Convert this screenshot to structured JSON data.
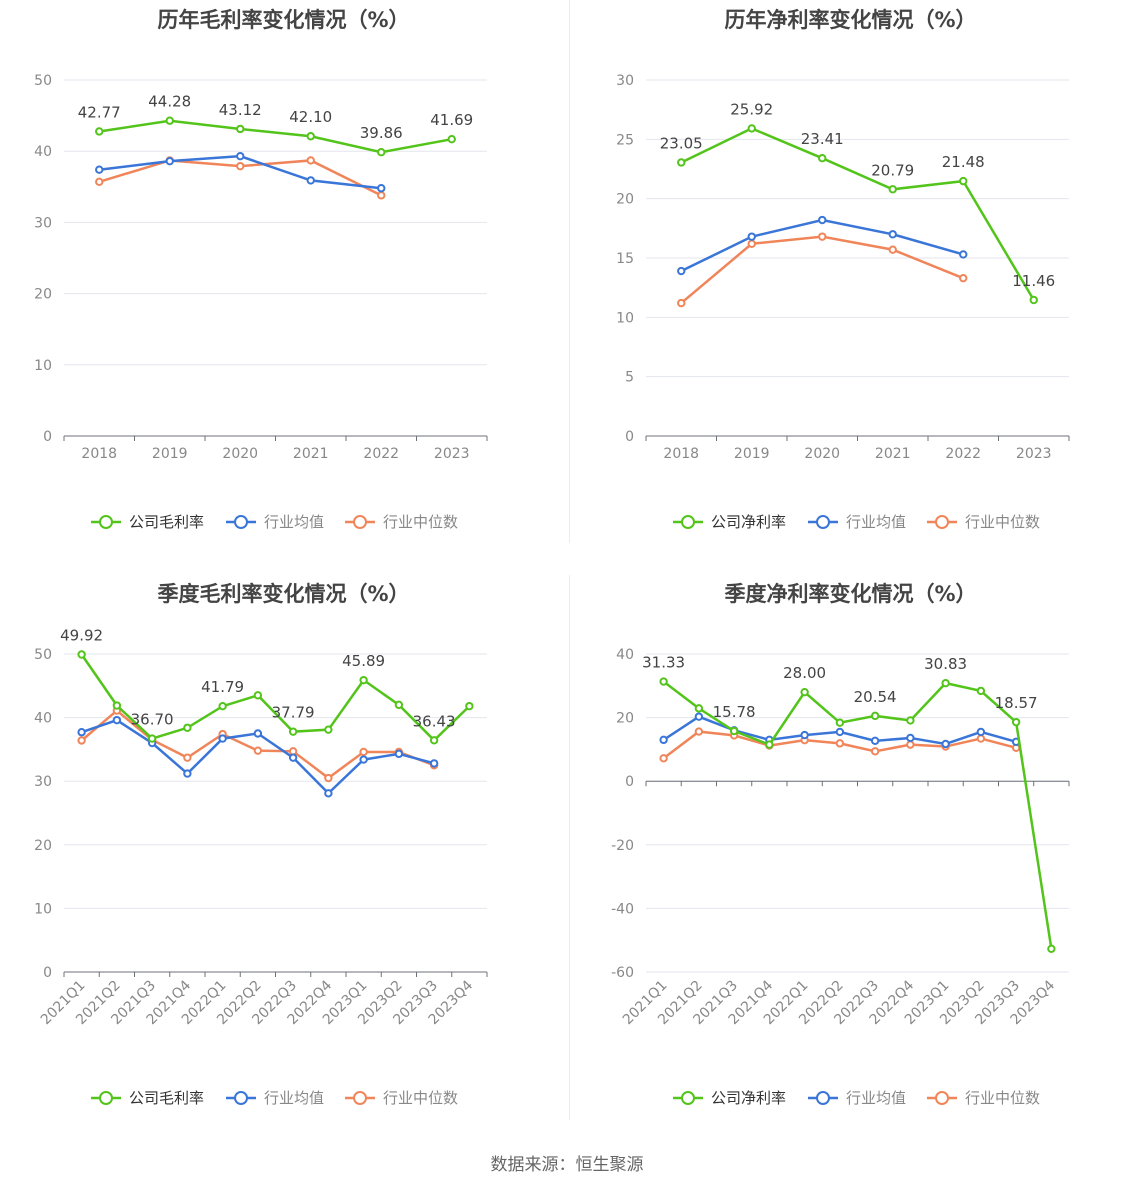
{
  "chart_data": [
    {
      "type": "line",
      "title": "历年毛利率变化情况（%）",
      "categories": [
        "2018",
        "2019",
        "2020",
        "2021",
        "2022",
        "2023"
      ],
      "ylim": [
        0,
        50
      ],
      "yticks": [
        0,
        10,
        20,
        30,
        40,
        50
      ],
      "grid": true,
      "legend_position": "bottom",
      "series": [
        {
          "name": "公司毛利率",
          "color": "#52c41a",
          "values": [
            42.77,
            44.28,
            43.12,
            42.1,
            39.86,
            41.69
          ],
          "labels": [
            "42.77",
            "44.28",
            "43.12",
            "42.10",
            "39.86",
            "41.69"
          ]
        },
        {
          "name": "行业均值",
          "color": "#3a75d8",
          "values": [
            37.4,
            38.6,
            39.3,
            35.9,
            34.8,
            null
          ]
        },
        {
          "name": "行业中位数",
          "color": "#f0855a",
          "values": [
            35.7,
            38.7,
            37.9,
            38.7,
            33.8,
            null
          ]
        }
      ]
    },
    {
      "type": "line",
      "title": "历年净利率变化情况（%）",
      "categories": [
        "2018",
        "2019",
        "2020",
        "2021",
        "2022",
        "2023"
      ],
      "ylim": [
        0,
        30
      ],
      "yticks": [
        0,
        5,
        10,
        15,
        20,
        25,
        30
      ],
      "grid": true,
      "legend_position": "bottom",
      "series": [
        {
          "name": "公司净利率",
          "color": "#52c41a",
          "values": [
            23.05,
            25.92,
            23.41,
            20.79,
            21.48,
            11.46
          ],
          "labels": [
            "23.05",
            "25.92",
            "23.41",
            "20.79",
            "21.48",
            "11.46"
          ]
        },
        {
          "name": "行业均值",
          "color": "#3a75d8",
          "values": [
            13.9,
            16.8,
            18.2,
            17.0,
            15.3,
            null
          ]
        },
        {
          "name": "行业中位数",
          "color": "#f0855a",
          "values": [
            11.2,
            16.2,
            16.8,
            15.7,
            13.3,
            null
          ]
        }
      ]
    },
    {
      "type": "line",
      "title": "季度毛利率变化情况（%）",
      "categories": [
        "2021Q1",
        "2021Q2",
        "2021Q3",
        "2021Q4",
        "2022Q1",
        "2022Q2",
        "2022Q3",
        "2022Q4",
        "2023Q1",
        "2023Q2",
        "2023Q3",
        "2023Q4"
      ],
      "ylim": [
        0,
        50
      ],
      "yticks": [
        0,
        10,
        20,
        30,
        40,
        50
      ],
      "grid": true,
      "legend_position": "bottom",
      "series": [
        {
          "name": "公司毛利率",
          "color": "#52c41a",
          "values": [
            49.92,
            41.9,
            36.7,
            38.4,
            41.79,
            43.5,
            37.79,
            38.1,
            45.89,
            42.0,
            36.43,
            41.8
          ],
          "labels": [
            "49.92",
            "",
            "36.70",
            "",
            "41.79",
            "",
            "37.79",
            "",
            "45.89",
            "",
            "36.43",
            ""
          ]
        },
        {
          "name": "行业均值",
          "color": "#3a75d8",
          "values": [
            37.7,
            39.6,
            36.0,
            31.2,
            36.7,
            37.5,
            33.7,
            28.1,
            33.4,
            34.3,
            32.8,
            null
          ]
        },
        {
          "name": "行业中位数",
          "color": "#f0855a",
          "values": [
            36.4,
            41.1,
            36.5,
            33.7,
            37.4,
            34.8,
            34.7,
            30.5,
            34.6,
            34.6,
            32.5,
            null
          ]
        }
      ]
    },
    {
      "type": "line",
      "title": "季度净利率变化情况（%）",
      "categories": [
        "2021Q1",
        "2021Q2",
        "2021Q3",
        "2021Q4",
        "2022Q1",
        "2022Q2",
        "2022Q3",
        "2022Q4",
        "2023Q1",
        "2023Q2",
        "2023Q3",
        "2023Q4"
      ],
      "ylim": [
        -60,
        40
      ],
      "yticks": [
        -60,
        -40,
        -20,
        0,
        20,
        40
      ],
      "grid": true,
      "legend_position": "bottom",
      "series": [
        {
          "name": "公司净利率",
          "color": "#52c41a",
          "values": [
            31.33,
            22.9,
            15.78,
            11.5,
            28.0,
            18.4,
            20.54,
            19.1,
            30.83,
            28.4,
            18.57,
            -52.7
          ],
          "labels": [
            "31.33",
            "",
            "15.78",
            "",
            "28.00",
            "",
            "20.54",
            "",
            "30.83",
            "",
            "18.57",
            ""
          ]
        },
        {
          "name": "行业均值",
          "color": "#3a75d8",
          "values": [
            13.0,
            20.3,
            16.0,
            13.0,
            14.5,
            15.5,
            12.7,
            13.6,
            11.7,
            15.5,
            12.4,
            null
          ]
        },
        {
          "name": "行业中位数",
          "color": "#f0855a",
          "values": [
            7.2,
            15.6,
            14.4,
            11.2,
            12.9,
            11.9,
            9.4,
            11.5,
            10.9,
            13.4,
            10.5,
            null
          ]
        }
      ]
    }
  ],
  "source": "数据来源：恒生聚源"
}
